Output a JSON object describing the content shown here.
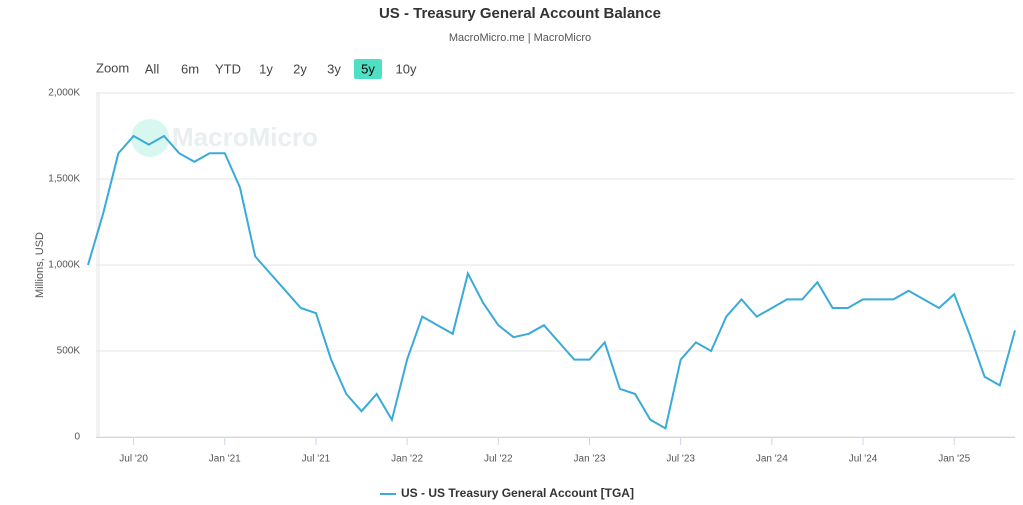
{
  "chart_data": {
    "type": "line",
    "title": "US - Treasury General Account Balance",
    "subtitle": "MacroMicro.me | MacroMicro",
    "watermark": "MacroMicro",
    "zoom_label": "Zoom",
    "zoom_buttons": [
      "All",
      "6m",
      "YTD",
      "1y",
      "2y",
      "3y",
      "5y",
      "10y"
    ],
    "zoom_active": "5y",
    "y_label": "Millions, USD",
    "x": [
      "2020-04",
      "2020-05",
      "2020-06",
      "2020-07",
      "2020-08",
      "2020-09",
      "2020-10",
      "2020-11",
      "2020-12",
      "2021-01",
      "2021-02",
      "2021-03",
      "2021-04",
      "2021-05",
      "2021-06",
      "2021-07",
      "2021-08",
      "2021-09",
      "2021-10",
      "2021-11",
      "2021-12",
      "2022-01",
      "2022-02",
      "2022-03",
      "2022-04",
      "2022-05",
      "2022-06",
      "2022-07",
      "2022-08",
      "2022-09",
      "2022-10",
      "2022-11",
      "2022-12",
      "2023-01",
      "2023-02",
      "2023-03",
      "2023-04",
      "2023-05",
      "2023-06",
      "2023-07",
      "2023-08",
      "2023-09",
      "2023-10",
      "2023-11",
      "2023-12",
      "2024-01",
      "2024-02",
      "2024-03",
      "2024-04",
      "2024-05",
      "2024-06",
      "2024-07",
      "2024-08",
      "2024-09",
      "2024-10",
      "2024-11",
      "2024-12",
      "2025-01",
      "2025-02",
      "2025-03",
      "2025-04",
      "2025-05"
    ],
    "series": [
      {
        "name": "US - US Treasury General Account [TGA]",
        "color": "#3aaad8",
        "values": [
          1000000,
          1300000,
          1650000,
          1750000,
          1700000,
          1750000,
          1650000,
          1600000,
          1650000,
          1650000,
          1450000,
          1050000,
          950000,
          850000,
          750000,
          720000,
          450000,
          250000,
          150000,
          250000,
          100000,
          450000,
          700000,
          650000,
          600000,
          950000,
          780000,
          650000,
          580000,
          600000,
          650000,
          550000,
          450000,
          450000,
          550000,
          280000,
          250000,
          100000,
          50000,
          450000,
          550000,
          500000,
          700000,
          800000,
          700000,
          750000,
          800000,
          800000,
          900000,
          750000,
          750000,
          800000,
          800000,
          800000,
          850000,
          800000,
          750000,
          830000,
          600000,
          350000,
          300000,
          620000
        ]
      }
    ],
    "xlim": [
      "2020-04",
      "2025-05"
    ],
    "xticks": [
      {
        "value": "2020-07",
        "label": "Jul '20"
      },
      {
        "value": "2021-01",
        "label": "Jan '21"
      },
      {
        "value": "2021-07",
        "label": "Jul '21"
      },
      {
        "value": "2022-01",
        "label": "Jan '22"
      },
      {
        "value": "2022-07",
        "label": "Jul '22"
      },
      {
        "value": "2023-01",
        "label": "Jan '23"
      },
      {
        "value": "2023-07",
        "label": "Jul '23"
      },
      {
        "value": "2024-01",
        "label": "Jan '24"
      },
      {
        "value": "2024-07",
        "label": "Jul '24"
      },
      {
        "value": "2025-01",
        "label": "Jan '25"
      }
    ],
    "ylim": [
      0,
      2000000
    ],
    "yticks": [
      0,
      {
        "value": 500000,
        "label": "500K"
      },
      {
        "value": 1000000,
        "label": "1,000K"
      },
      {
        "value": 1500000,
        "label": "1,500K"
      },
      {
        "value": 2000000,
        "label": "2,000K"
      }
    ],
    "grid": true
  }
}
